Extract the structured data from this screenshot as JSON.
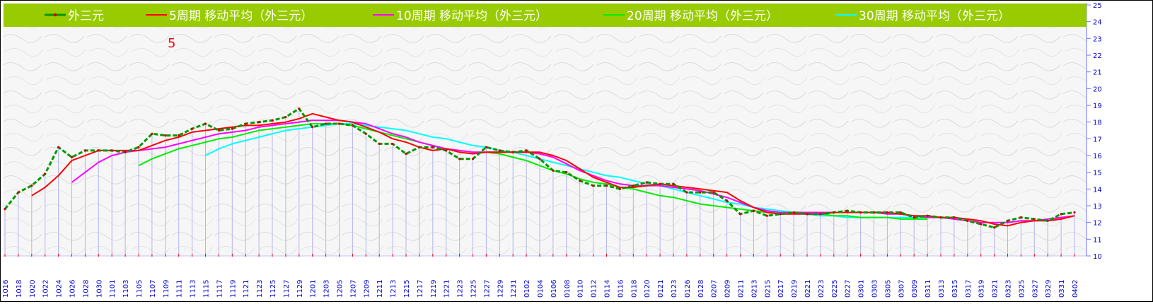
{
  "chart_data": {
    "type": "line",
    "title": "",
    "xlabel": "",
    "ylabel": "",
    "ylim": [
      10,
      25
    ],
    "y_ticks": [
      10,
      11,
      12,
      13,
      14,
      15,
      16,
      17,
      18,
      19,
      20,
      21,
      22,
      23,
      24,
      25
    ],
    "grid": "vertical-lines",
    "legend_position": "top",
    "annotation": "5",
    "x_tick_labels": [
      "1016",
      "1018",
      "1020",
      "1022",
      "1024",
      "1026",
      "1028",
      "1030",
      "1101",
      "1103",
      "1105",
      "1107",
      "1109",
      "1111",
      "1113",
      "1115",
      "1117",
      "1119",
      "1121",
      "1123",
      "1125",
      "1127",
      "1129",
      "1201",
      "1203",
      "1205",
      "1207",
      "1209",
      "1211",
      "1213",
      "1215",
      "1217",
      "1219",
      "1221",
      "1223",
      "1225",
      "1227",
      "1229",
      "1231",
      "0102",
      "0104",
      "0106",
      "0108",
      "0110",
      "0112",
      "0114",
      "0116",
      "0118",
      "0120",
      "0121",
      "0123",
      "0126",
      "0128",
      "0207",
      "0209",
      "0211",
      "0213",
      "0215",
      "0217",
      "0219",
      "0221",
      "0223",
      "0225",
      "0227",
      "0301",
      "0303",
      "0305",
      "0307",
      "0309",
      "0311",
      "0313",
      "0315",
      "0317",
      "0319",
      "0321",
      "0323",
      "0325",
      "0327",
      "0329",
      "0331",
      "0402"
    ],
    "colors": {
      "legend_bg": "#99cc00",
      "legend_text": "#ffffff",
      "price": "#009900",
      "price_dots": "#cc0000",
      "ma5": "#ff0000",
      "ma10": "#ff00ff",
      "ma20": "#00ee00",
      "ma30": "#00ffff",
      "bars": "#b4b4f0",
      "axis_labels": "#0000cc"
    },
    "series": [
      {
        "name": "外三元",
        "values": [
          12.8,
          13.8,
          14.2,
          14.9,
          16.5,
          15.9,
          16.3,
          16.3,
          16.3,
          16.2,
          16.5,
          17.3,
          17.2,
          17.2,
          17.6,
          17.9,
          17.5,
          17.6,
          17.9,
          18.0,
          18.1,
          18.3,
          18.8,
          17.7,
          17.9,
          17.9,
          17.8,
          17.3,
          16.7,
          16.7,
          16.1,
          16.5,
          16.5,
          16.3,
          15.8,
          15.8,
          16.5,
          16.3,
          16.2,
          16.3,
          15.8,
          15.1,
          15.0,
          14.5,
          14.2,
          14.2,
          14.0,
          14.2,
          14.4,
          14.3,
          14.3,
          13.8,
          13.8,
          13.8,
          13.3,
          12.5,
          12.7,
          12.4,
          12.5,
          12.6,
          12.5,
          12.5,
          12.6,
          12.7,
          12.6,
          12.6,
          12.6,
          12.6,
          12.3,
          12.4,
          12.3,
          12.3,
          12.1,
          11.9,
          11.7,
          12.1,
          12.3,
          12.2,
          12.1,
          12.5,
          12.6
        ]
      },
      {
        "name": "5周期 移动平均（外三元）",
        "values": [
          null,
          null,
          13.6,
          14.1,
          14.8,
          15.7,
          16.0,
          16.3,
          16.3,
          16.3,
          16.3,
          16.6,
          16.9,
          17.1,
          17.4,
          17.5,
          17.6,
          17.7,
          17.8,
          17.8,
          17.9,
          18.0,
          18.2,
          18.5,
          18.3,
          18.1,
          18.0,
          17.7,
          17.4,
          17.0,
          16.8,
          16.5,
          16.3,
          16.4,
          16.2,
          16.1,
          16.2,
          16.2,
          16.2,
          16.2,
          16.2,
          16.0,
          15.7,
          15.2,
          14.7,
          14.4,
          14.1,
          14.1,
          14.2,
          14.3,
          14.2,
          14.1,
          14.0,
          13.9,
          13.8,
          13.3,
          12.9,
          12.6,
          12.5,
          12.5,
          12.5,
          12.5,
          12.6,
          12.6,
          12.6,
          12.6,
          12.6,
          12.5,
          12.4,
          12.4,
          12.3,
          12.3,
          12.2,
          12.1,
          11.9,
          11.8,
          12.0,
          12.1,
          12.1,
          12.2,
          12.4
        ]
      },
      {
        "name": "10周期 移动平均（外三元）",
        "values": [
          null,
          null,
          null,
          null,
          null,
          14.4,
          15.0,
          15.6,
          16.0,
          16.2,
          16.3,
          16.4,
          16.5,
          16.7,
          16.9,
          17.1,
          17.3,
          17.4,
          17.5,
          17.7,
          17.8,
          17.9,
          18.0,
          18.1,
          18.1,
          18.1,
          18.0,
          17.9,
          17.6,
          17.3,
          17.1,
          16.8,
          16.6,
          16.4,
          16.3,
          16.2,
          16.2,
          16.2,
          16.2,
          16.2,
          16.1,
          15.9,
          15.5,
          15.1,
          14.8,
          14.5,
          14.3,
          14.2,
          14.2,
          14.2,
          14.1,
          14.0,
          13.9,
          13.7,
          13.5,
          13.2,
          12.9,
          12.7,
          12.6,
          12.6,
          12.6,
          12.6,
          12.6,
          12.6,
          12.6,
          12.6,
          12.5,
          12.5,
          12.4,
          12.3,
          12.3,
          12.2,
          12.1,
          12.0,
          12.0,
          12.0,
          12.1,
          12.1,
          12.2,
          12.3,
          12.4
        ]
      },
      {
        "name": "20周期 移动平均（外三元）",
        "values": [
          null,
          null,
          null,
          null,
          null,
          null,
          null,
          null,
          null,
          null,
          15.4,
          15.8,
          16.1,
          16.4,
          16.6,
          16.8,
          17.0,
          17.1,
          17.3,
          17.5,
          17.6,
          17.7,
          17.8,
          17.9,
          17.9,
          17.9,
          17.8,
          17.6,
          17.4,
          17.2,
          17.0,
          16.8,
          16.6,
          16.4,
          16.3,
          16.2,
          16.2,
          16.1,
          15.9,
          15.7,
          15.4,
          15.1,
          14.9,
          14.6,
          14.4,
          14.3,
          14.1,
          14.0,
          13.8,
          13.6,
          13.5,
          13.3,
          13.1,
          13.0,
          12.9,
          12.8,
          12.7,
          12.6,
          12.6,
          12.6,
          12.5,
          12.5,
          12.4,
          12.4,
          12.3,
          12.3,
          12.3,
          12.2,
          12.2,
          12.2
        ]
      },
      {
        "name": "30周期 移动平均（外三元）",
        "values": [
          null,
          null,
          null,
          null,
          null,
          null,
          null,
          null,
          null,
          null,
          null,
          null,
          null,
          null,
          null,
          16.0,
          16.4,
          16.7,
          16.9,
          17.1,
          17.3,
          17.5,
          17.6,
          17.7,
          17.8,
          17.9,
          17.9,
          17.8,
          17.7,
          17.6,
          17.5,
          17.3,
          17.1,
          17.0,
          16.8,
          16.6,
          16.5,
          16.3,
          16.2,
          16.0,
          15.8,
          15.6,
          15.4,
          15.2,
          15.0,
          14.8,
          14.7,
          14.5,
          14.3,
          14.2,
          14.0,
          13.8,
          13.6,
          13.4,
          13.2,
          13.1,
          12.9,
          12.8,
          12.7,
          12.6,
          12.5,
          12.4,
          12.4,
          12.3,
          12.3,
          12.3,
          12.3,
          12.3,
          12.3,
          12.3
        ]
      }
    ]
  }
}
